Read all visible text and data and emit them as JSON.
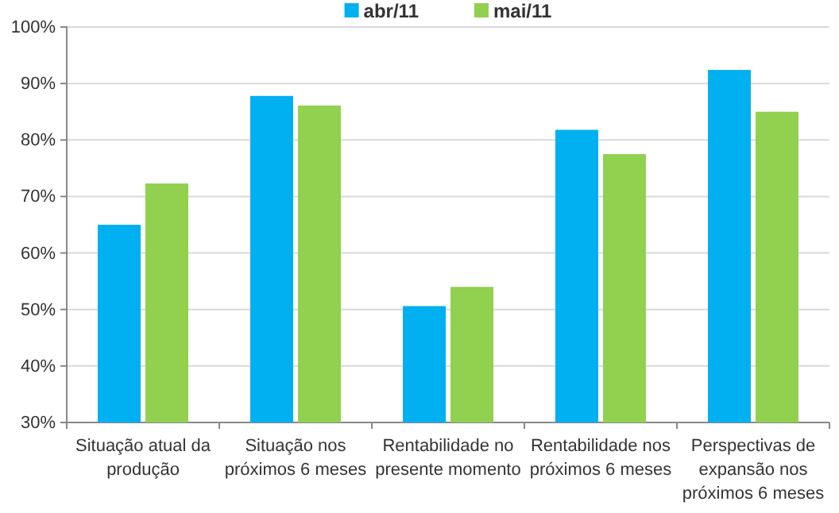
{
  "chart_data": {
    "type": "bar",
    "categories": [
      "Situação atual da produção",
      "Situação nos próximos 6 meses",
      "Rentabilidade no presente momento",
      "Rentabilidade nos próximos 6 meses",
      "Perspectivas de expansão nos próximos 6 meses"
    ],
    "series": [
      {
        "name": "abr/11",
        "color": "#00b0f0",
        "values": [
          65.0,
          87.8,
          50.6,
          81.8,
          92.4
        ]
      },
      {
        "name": "mai/11",
        "color": "#92d050",
        "values": [
          72.3,
          86.1,
          54.0,
          77.5,
          85.0
        ]
      }
    ],
    "ylim": [
      30,
      100
    ],
    "yticks": [
      {
        "value": 30,
        "label": "30%"
      },
      {
        "value": 40,
        "label": "40%"
      },
      {
        "value": 50,
        "label": "50%"
      },
      {
        "value": 60,
        "label": "60%"
      },
      {
        "value": 70,
        "label": "70%"
      },
      {
        "value": 80,
        "label": "80%"
      },
      {
        "value": 90,
        "label": "90%"
      },
      {
        "value": 100,
        "label": "100%"
      }
    ],
    "grid": "y",
    "legend": "top"
  }
}
